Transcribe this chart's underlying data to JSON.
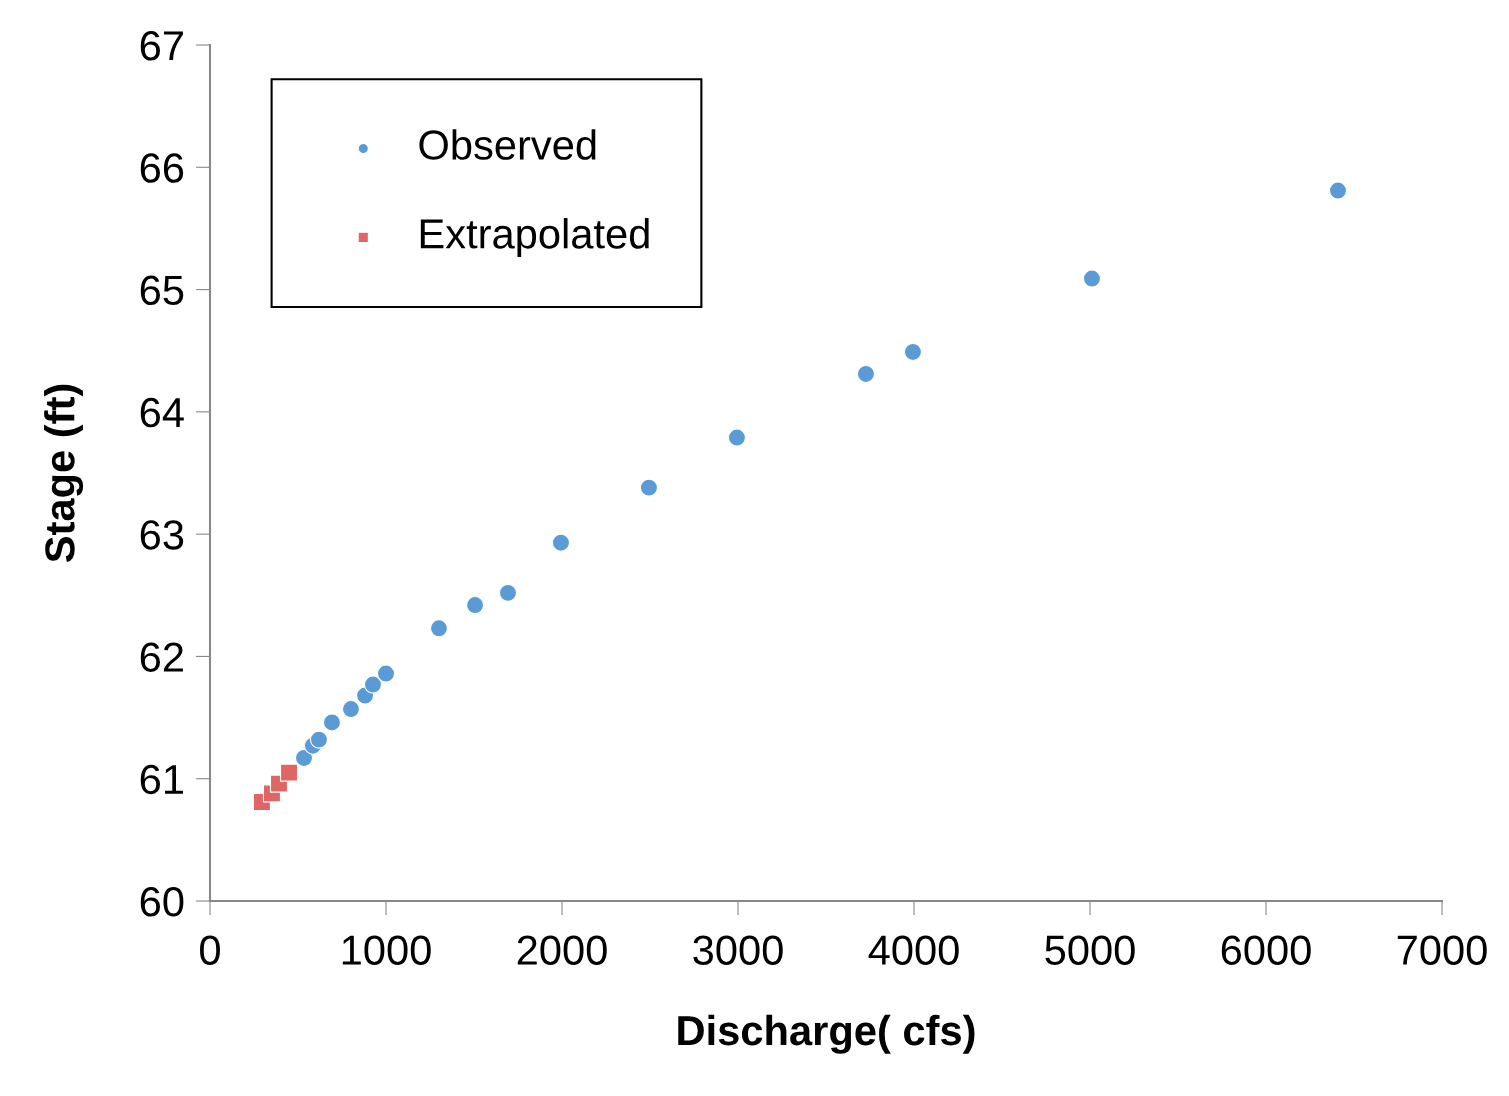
{
  "chart_data": {
    "type": "scatter",
    "xlabel": "Discharge( cfs)",
    "ylabel": "Stage (ft)",
    "xlim": [
      0,
      7000
    ],
    "xticks": [
      0,
      1000,
      2000,
      3000,
      4000,
      5000,
      6000,
      7000
    ],
    "ylim": [
      60,
      67
    ],
    "yticks": [
      60,
      61,
      62,
      63,
      64,
      65,
      66,
      67
    ],
    "grid": false,
    "legend": "top left",
    "series": [
      {
        "name": "Observed",
        "color": "#5b9bd5",
        "marker": "circle",
        "x": [
          534,
          585,
          619,
          693,
          801,
          881,
          926,
          1000,
          1301,
          1506,
          1693,
          1994,
          2494,
          2994,
          3727,
          3994,
          5011,
          6409
        ],
        "values": [
          61.17,
          61.27,
          61.32,
          61.46,
          61.57,
          61.68,
          61.77,
          61.86,
          62.23,
          62.42,
          62.52,
          62.93,
          63.38,
          63.79,
          64.31,
          64.49,
          65.09,
          65.81
        ]
      },
      {
        "name": "Extrapolated",
        "color": "#e06666",
        "marker": "square",
        "x": [
          295,
          352,
          392,
          449
        ],
        "values": [
          60.81,
          60.88,
          60.96,
          61.05
        ]
      }
    ]
  }
}
